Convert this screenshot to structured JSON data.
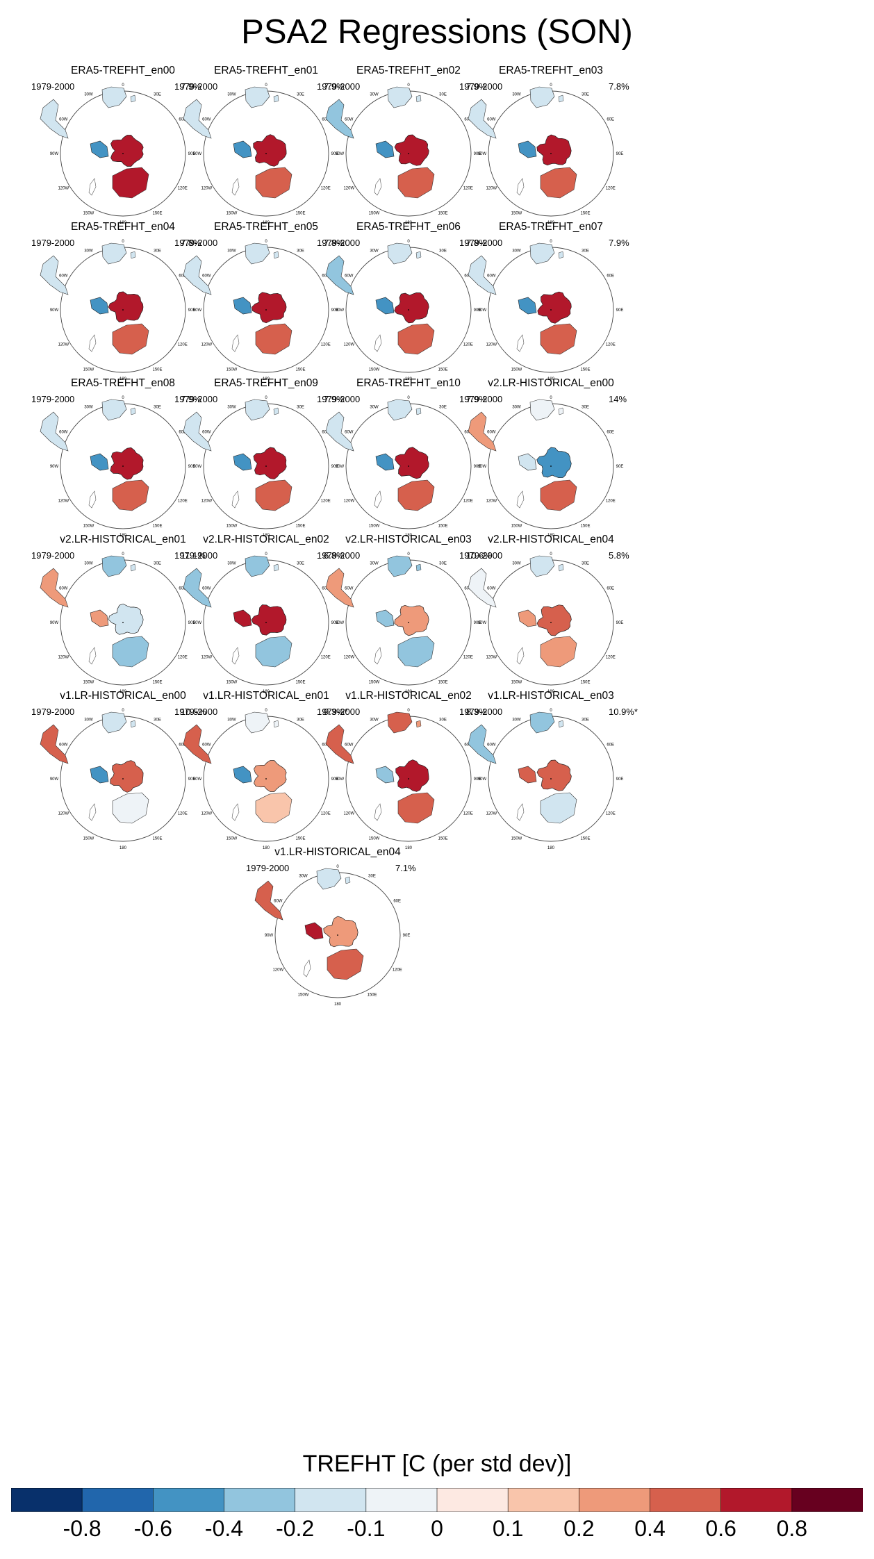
{
  "figure_title": "PSA2 Regressions (SON)",
  "colorbar": {
    "title": "TREFHT [C (per std dev)]",
    "labels": [
      "-0.8",
      "-0.6",
      "-0.4",
      "-0.2",
      "-0.1",
      "0",
      "0.1",
      "0.2",
      "0.4",
      "0.6",
      "0.8"
    ],
    "colors": [
      "#08306b",
      "#2166ac",
      "#4393c3",
      "#92c5de",
      "#d1e5f0",
      "#eef3f7",
      "#fde9e2",
      "#f9c5ab",
      "#ee9a7a",
      "#d6604d",
      "#b2182b",
      "#67001f"
    ]
  },
  "map_labels": {
    "lon": [
      "0",
      "30E",
      "60E",
      "90E",
      "120E",
      "150E",
      "180",
      "150W",
      "120W",
      "90W",
      "60W",
      "30W"
    ]
  },
  "chart_data": {
    "type": "map-panels",
    "title": "PSA2 Regressions (SON)",
    "variable": "TREFHT",
    "units": "C (per std dev)",
    "panels": [
      {
        "name": "ERA5-TREFHT_en00",
        "period": "1979-2000",
        "pct": "7.9%",
        "ant": 0.7,
        "pen": -0.6,
        "aus": 0.6,
        "saf": -0.2,
        "sam": -0.2
      },
      {
        "name": "ERA5-TREFHT_en01",
        "period": "1979-2000",
        "pct": "7.9%",
        "ant": 0.6,
        "pen": -0.6,
        "aus": 0.5,
        "saf": -0.2,
        "sam": -0.2
      },
      {
        "name": "ERA5-TREFHT_en02",
        "period": "1979-2000",
        "pct": "7.9%",
        "ant": 0.6,
        "pen": -0.6,
        "aus": 0.5,
        "saf": -0.2,
        "sam": -0.3
      },
      {
        "name": "ERA5-TREFHT_en03",
        "period": "1979-2000",
        "pct": "7.8%",
        "ant": 0.6,
        "pen": -0.6,
        "aus": 0.5,
        "saf": -0.2,
        "sam": -0.2
      },
      {
        "name": "ERA5-TREFHT_en04",
        "period": "1979-2000",
        "pct": "7.8%",
        "ant": 0.6,
        "pen": -0.6,
        "aus": 0.5,
        "saf": -0.2,
        "sam": -0.2
      },
      {
        "name": "ERA5-TREFHT_en05",
        "period": "1979-2000",
        "pct": "7.8%",
        "ant": 0.6,
        "pen": -0.6,
        "aus": 0.5,
        "saf": -0.2,
        "sam": -0.2
      },
      {
        "name": "ERA5-TREFHT_en06",
        "period": "1979-2000",
        "pct": "7.8%",
        "ant": 0.6,
        "pen": -0.6,
        "aus": 0.5,
        "saf": -0.2,
        "sam": -0.3
      },
      {
        "name": "ERA5-TREFHT_en07",
        "period": "1979-2000",
        "pct": "7.9%",
        "ant": 0.6,
        "pen": -0.6,
        "aus": 0.5,
        "saf": -0.2,
        "sam": -0.2
      },
      {
        "name": "ERA5-TREFHT_en08",
        "period": "1979-2000",
        "pct": "7.9%",
        "ant": 0.6,
        "pen": -0.6,
        "aus": 0.5,
        "saf": -0.2,
        "sam": -0.2
      },
      {
        "name": "ERA5-TREFHT_en09",
        "period": "1979-2000",
        "pct": "7.9%",
        "ant": 0.6,
        "pen": -0.6,
        "aus": 0.5,
        "saf": -0.2,
        "sam": -0.2
      },
      {
        "name": "ERA5-TREFHT_en10",
        "period": "1979-2000",
        "pct": "7.9%",
        "ant": 0.6,
        "pen": -0.6,
        "aus": 0.5,
        "saf": -0.2,
        "sam": -0.2
      },
      {
        "name": "v2.LR-HISTORICAL_en00",
        "period": "1979-2000",
        "pct": "14%",
        "ant": -0.6,
        "pen": -0.2,
        "aus": 0.4,
        "saf": -0.1,
        "sam": 0.3
      },
      {
        "name": "v2.LR-HISTORICAL_en01",
        "period": "1979-2000",
        "pct": "11.1%",
        "ant": -0.2,
        "pen": 0.2,
        "aus": -0.3,
        "saf": -0.3,
        "sam": 0.2
      },
      {
        "name": "v2.LR-HISTORICAL_en02",
        "period": "1979-2000",
        "pct": "6.8%",
        "ant": 0.6,
        "pen": 0.6,
        "aus": -0.3,
        "saf": -0.3,
        "sam": -0.3
      },
      {
        "name": "v2.LR-HISTORICAL_en03",
        "period": "1979-2000",
        "pct": "10.6%",
        "ant": 0.3,
        "pen": -0.3,
        "aus": -0.3,
        "saf": -0.4,
        "sam": 0.3
      },
      {
        "name": "v2.LR-HISTORICAL_en04",
        "period": "1979-2000",
        "pct": "5.8%",
        "ant": 0.5,
        "pen": 0.2,
        "aus": 0.2,
        "saf": -0.2,
        "sam": -0.1
      },
      {
        "name": "v1.LR-HISTORICAL_en00",
        "period": "1979-2000",
        "pct": "10.5%",
        "ant": 0.4,
        "pen": -0.6,
        "aus": -0.1,
        "saf": -0.2,
        "sam": 0.4
      },
      {
        "name": "v1.LR-HISTORICAL_en01",
        "period": "1979-2000",
        "pct": "9.3%*",
        "ant": 0.3,
        "pen": -0.5,
        "aus": 0.1,
        "saf": -0.1,
        "sam": 0.4
      },
      {
        "name": "v1.LR-HISTORICAL_en02",
        "period": "1979-2000",
        "pct": "8.3%",
        "ant": 0.6,
        "pen": -0.3,
        "aus": 0.4,
        "saf": 0.5,
        "sam": 0.5
      },
      {
        "name": "v1.LR-HISTORICAL_en03",
        "period": "1979-2000",
        "pct": "10.9%*",
        "ant": 0.5,
        "pen": 0.4,
        "aus": -0.2,
        "saf": -0.3,
        "sam": -0.3
      },
      {
        "name": "v1.LR-HISTORICAL_en04",
        "period": "1979-2000",
        "pct": "7.1%",
        "ant": 0.3,
        "pen": 0.6,
        "aus": 0.5,
        "saf": -0.2,
        "sam": 0.4
      }
    ]
  }
}
